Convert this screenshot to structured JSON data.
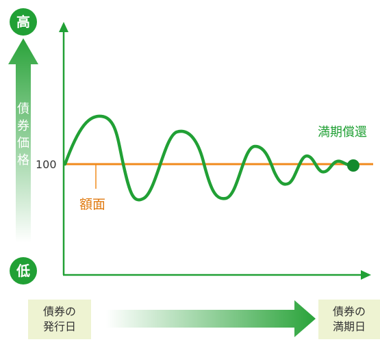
{
  "colors": {
    "green": "#21a035",
    "orange": "#f08a1c",
    "axis": "#21a035",
    "box": "#eef3d2"
  },
  "y_axis": {
    "high_label": "高",
    "low_label": "低",
    "title": "債券価格",
    "ref_value": "100"
  },
  "face_value_label": "額面",
  "maturity_redemption_label": "満期償還",
  "timeline": {
    "issue_date_line1": "債券の",
    "issue_date_line2": "発行日",
    "maturity_date_line1": "債券の",
    "maturity_date_line2": "満期日"
  }
}
